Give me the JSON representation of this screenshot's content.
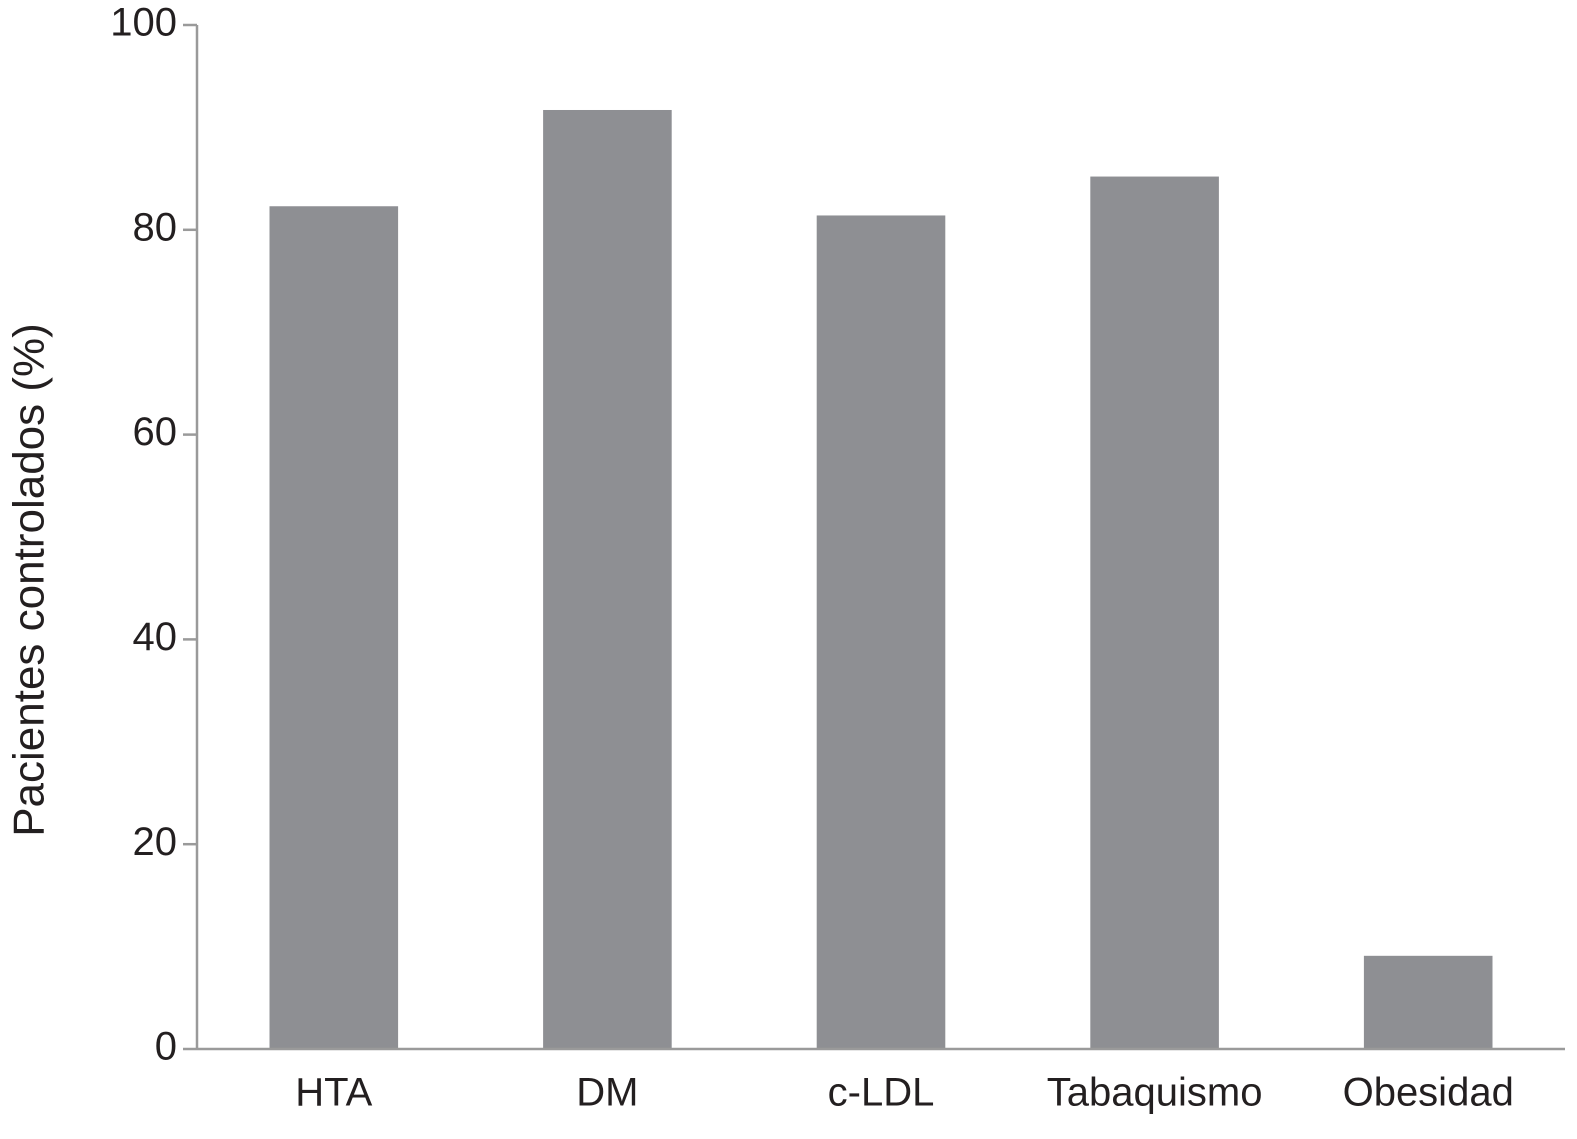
{
  "chart_data": {
    "type": "bar",
    "y_label": "Pacientes controlados (%)",
    "categories": [
      "HTA",
      "DM",
      "c-LDL",
      "Tabaquismo",
      "Obesidad"
    ],
    "values": [
      82.3,
      91.7,
      81.4,
      85.2,
      9.1
    ],
    "color": "#8e8f93",
    "ylim": [
      0,
      100
    ],
    "yticks": [
      0,
      20,
      40,
      60,
      80,
      100
    ],
    "grid": false
  }
}
